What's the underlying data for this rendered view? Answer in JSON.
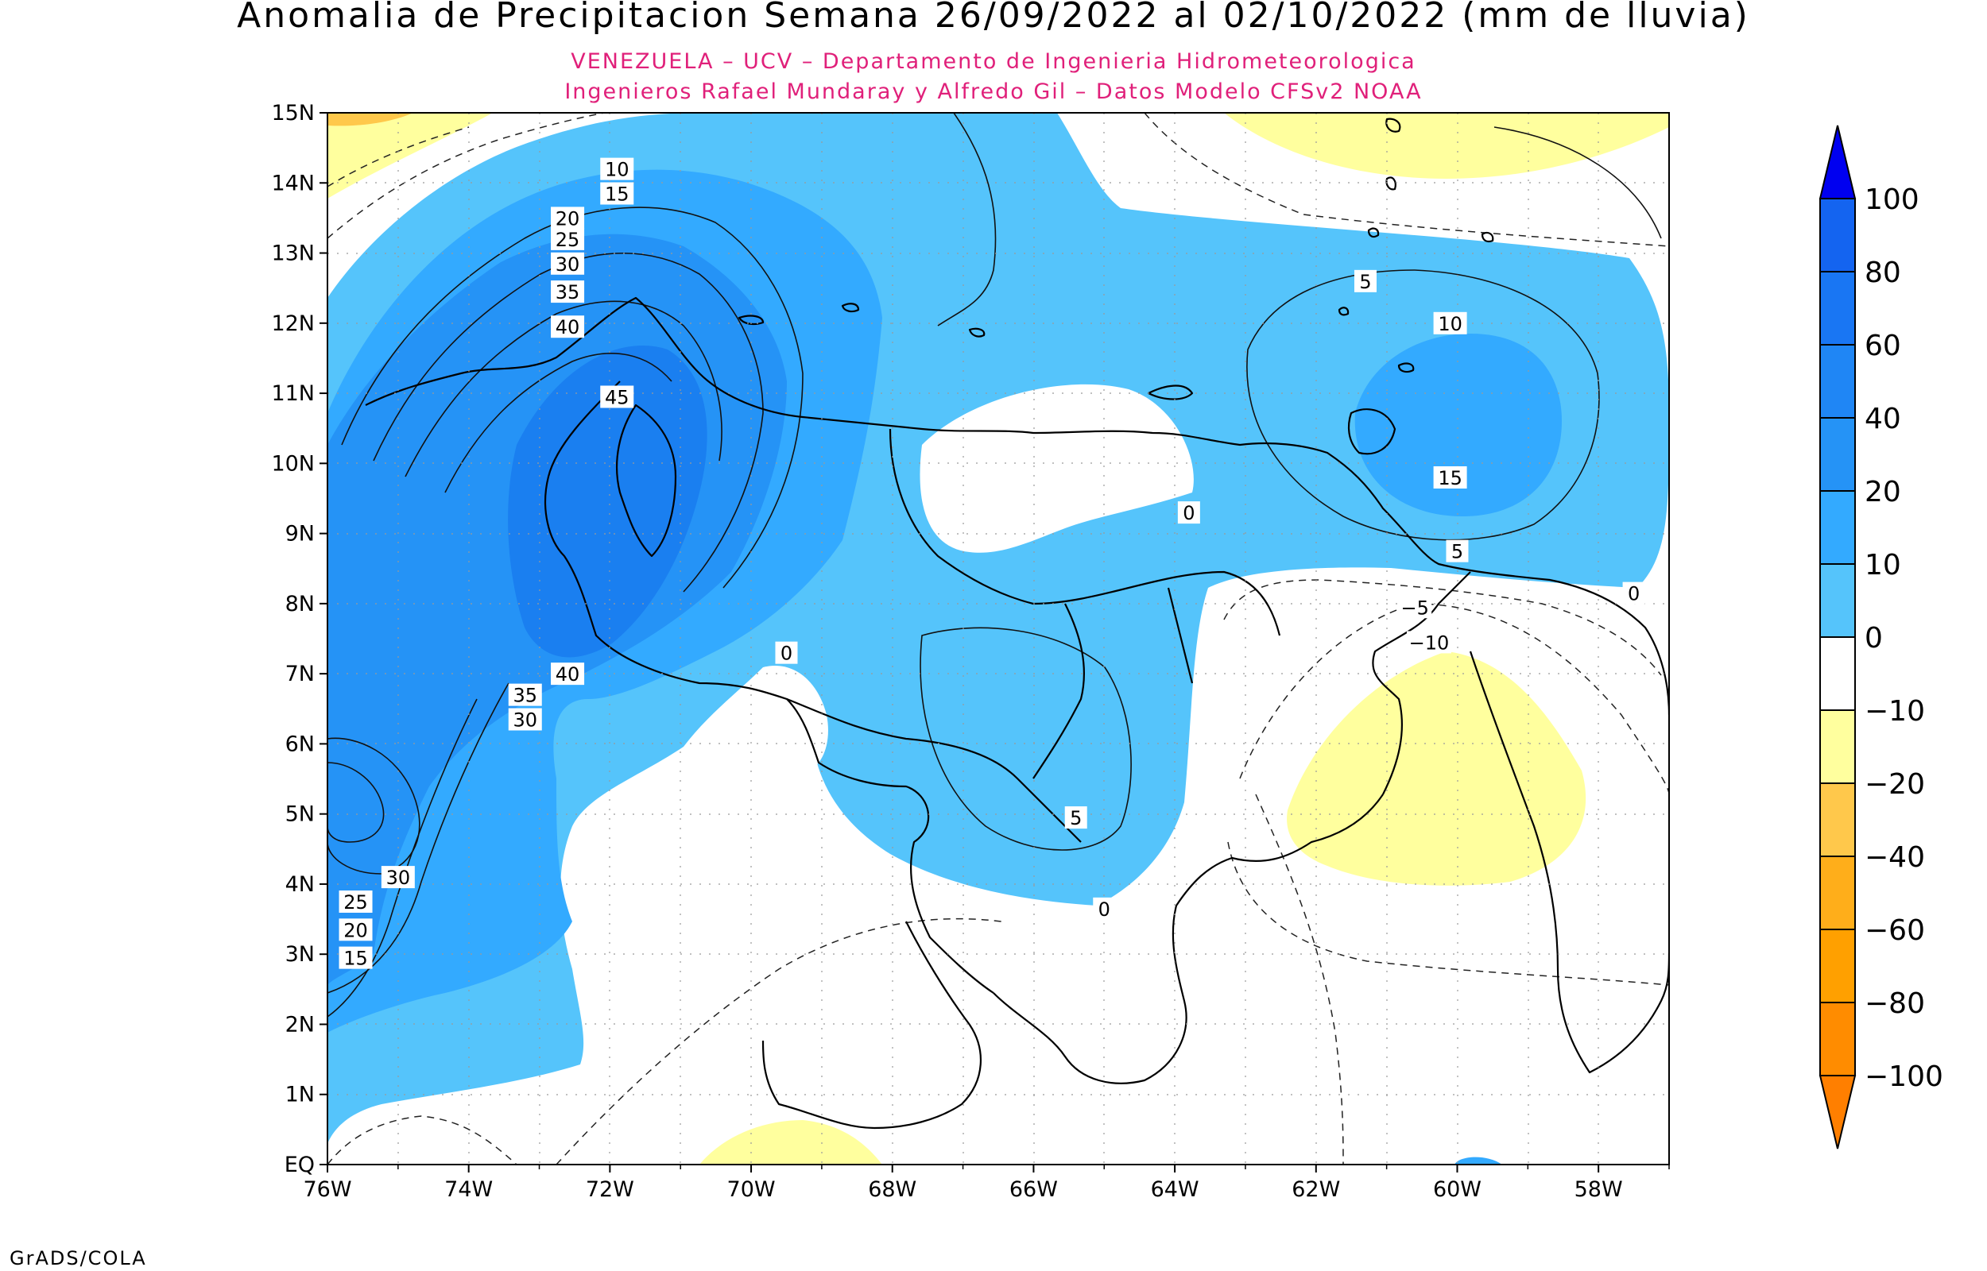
{
  "header": {
    "title": "Anomalia de Precipitacion Semana 26/09/2022 al 02/10/2022 (mm de lluvia)",
    "subtitle_line1": "VENEZUELA – UCV – Departamento de Ingenieria Hidrometeorologica",
    "subtitle_line2": "Ingenieros Rafael Mundaray y Alfredo Gil – Datos Modelo CFSv2 NOAA"
  },
  "footer": {
    "credit": "GrADS/COLA"
  },
  "colors": {
    "title": "#000000",
    "subtitle": "#e0207a",
    "neg_10": "#ffff9e",
    "pos_0": "#55c4fb",
    "pos_10": "#33aaff",
    "pos_20": "#2593f6",
    "pos_40": "#1a7ff0",
    "max_blue": "#0000f0",
    "max_orange": "#ff7f00"
  },
  "chart_data": {
    "type": "heatmap",
    "lon_ticks": [
      "76W",
      "74W",
      "72W",
      "70W",
      "68W",
      "66W",
      "64W",
      "62W",
      "60W",
      "58W"
    ],
    "lat_ticks": [
      "EQ",
      "1N",
      "2N",
      "3N",
      "4N",
      "5N",
      "6N",
      "7N",
      "8N",
      "9N",
      "10N",
      "11N",
      "12N",
      "13N",
      "14N",
      "15N"
    ],
    "lon_range": [
      -76,
      -57
    ],
    "lat_range": [
      0,
      15
    ],
    "colorbar": {
      "labels": [
        "100",
        "80",
        "60",
        "40",
        "20",
        "10",
        "0",
        "−10",
        "−20",
        "−40",
        "−60",
        "−80",
        "−100"
      ],
      "colors": [
        "#0000f0",
        "#1464f0",
        "#1976f3",
        "#1f86f5",
        "#2593f6",
        "#33aaff",
        "#55c4fb",
        "#ffffff",
        "#ffff9e",
        "#ffc84b",
        "#ffae1a",
        "#ffa000",
        "#ff8c00",
        "#ff7f00"
      ]
    },
    "contour_labels": [
      {
        "text": "10",
        "lon": -71.9,
        "lat": 14.2
      },
      {
        "text": "15",
        "lon": -71.9,
        "lat": 13.85
      },
      {
        "text": "20",
        "lon": -72.6,
        "lat": 13.5
      },
      {
        "text": "25",
        "lon": -72.6,
        "lat": 13.2
      },
      {
        "text": "30",
        "lon": -72.6,
        "lat": 12.85
      },
      {
        "text": "35",
        "lon": -72.6,
        "lat": 12.45
      },
      {
        "text": "40",
        "lon": -72.6,
        "lat": 11.95
      },
      {
        "text": "45",
        "lon": -71.9,
        "lat": 10.95
      },
      {
        "text": "5",
        "lon": -61.3,
        "lat": 12.6
      },
      {
        "text": "10",
        "lon": -60.1,
        "lat": 12.0
      },
      {
        "text": "15",
        "lon": -60.1,
        "lat": 9.8
      },
      {
        "text": "5",
        "lon": -60.0,
        "lat": 8.75
      },
      {
        "text": "0",
        "lon": -57.5,
        "lat": 8.15
      },
      {
        "text": "0",
        "lon": -63.8,
        "lat": 9.3
      },
      {
        "text": "−5",
        "lon": -60.6,
        "lat": 7.95
      },
      {
        "text": "−10",
        "lon": -60.4,
        "lat": 7.45
      },
      {
        "text": "0",
        "lon": -69.5,
        "lat": 7.3
      },
      {
        "text": "40",
        "lon": -72.6,
        "lat": 7.0
      },
      {
        "text": "35",
        "lon": -73.2,
        "lat": 6.7
      },
      {
        "text": "30",
        "lon": -73.2,
        "lat": 6.35
      },
      {
        "text": "5",
        "lon": -65.4,
        "lat": 4.95
      },
      {
        "text": "0",
        "lon": -65.0,
        "lat": 3.65
      },
      {
        "text": "30",
        "lon": -75.0,
        "lat": 4.1
      },
      {
        "text": "25",
        "lon": -75.6,
        "lat": 3.75
      },
      {
        "text": "20",
        "lon": -75.6,
        "lat": 3.35
      },
      {
        "text": "15",
        "lon": -75.6,
        "lat": 2.95
      }
    ]
  }
}
